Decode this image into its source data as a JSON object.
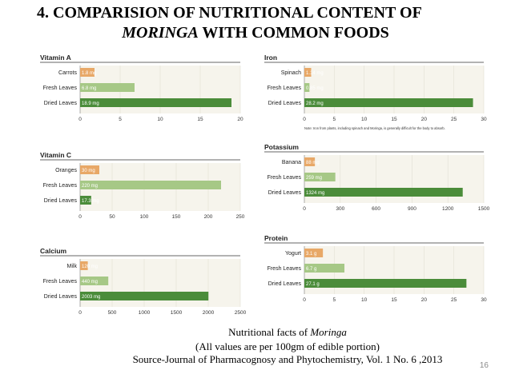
{
  "slide": {
    "title_line1": "4. COMPARISION OF NUTRITIONAL CONTENT OF",
    "title_line2_italic": "MORINGA",
    "title_line2_rest": " WITH COMMON FOODS",
    "footer_line1_prefix": "Nutritional facts of ",
    "footer_line1_italic": "Moringa",
    "footer_line2": "(All values are per 100gm of edible portion)",
    "footer_line3": "Source-Journal of Pharmacognosy and Phytochemistry, Vol. 1 No. 6 ,2013",
    "page_number": "16"
  },
  "colors": {
    "light_orange": "#e8a867",
    "light_green": "#a6c886",
    "dark_green": "#4b8c3a",
    "panel_bg": "#f6f4ec",
    "grid": "#e2dfd4"
  },
  "chart_data": [
    {
      "type": "bar",
      "title": "Vitamin A",
      "categories": [
        "Carrots",
        "Fresh Leaves",
        "Dried Leaves"
      ],
      "values": [
        1.8,
        6.8,
        18.9
      ],
      "labels": [
        "1.8 mg",
        "6.8 mg",
        "18.9 mg"
      ],
      "xlim": [
        0,
        20
      ],
      "ticks": [
        0,
        5,
        10,
        15,
        20
      ],
      "note": ""
    },
    {
      "type": "bar",
      "title": "Iron",
      "categories": [
        "Spinach",
        "Fresh Leaves",
        "Dried Leaves"
      ],
      "values": [
        1.14,
        0.85,
        28.2
      ],
      "labels": [
        "1.14 mg",
        "0.85 mg",
        "28.2 mg"
      ],
      "xlim": [
        0,
        30
      ],
      "ticks": [
        0,
        5,
        10,
        15,
        20,
        25,
        30
      ],
      "note": "Note: Iron from plants, including spinach and Moringa, is generally difficult for the body to absorb."
    },
    {
      "type": "bar",
      "title": "Vitamin C",
      "categories": [
        "Oranges",
        "Fresh Leaves",
        "Dried Leaves"
      ],
      "values": [
        30,
        220,
        17.3
      ],
      "labels": [
        "30 mg",
        "220 mg",
        "17.3 mg"
      ],
      "xlim": [
        0,
        250
      ],
      "ticks": [
        0,
        50,
        100,
        150,
        200,
        250
      ],
      "note": ""
    },
    {
      "type": "bar",
      "title": "Potassium",
      "categories": [
        "Banana",
        "Fresh Leaves",
        "Dried Leaves"
      ],
      "values": [
        88,
        259,
        1324
      ],
      "labels": [
        "88 mg",
        "259 mg",
        "1324 mg"
      ],
      "xlim": [
        0,
        1500
      ],
      "ticks": [
        0,
        300,
        600,
        900,
        1200,
        1500
      ],
      "note": ""
    },
    {
      "type": "bar",
      "title": "Calcium",
      "categories": [
        "Milk",
        "Fresh Leaves",
        "Dried Leaves"
      ],
      "values": [
        120,
        440,
        2003
      ],
      "labels": [
        "120 mg",
        "440 mg",
        "2003 mg"
      ],
      "xlim": [
        0,
        2500
      ],
      "ticks": [
        0,
        500,
        1000,
        1500,
        2000,
        2500
      ],
      "note": ""
    },
    {
      "type": "bar",
      "title": "Protein",
      "categories": [
        "Yogurt",
        "Fresh Leaves",
        "Dried Leaves"
      ],
      "values": [
        3.1,
        6.7,
        27.1
      ],
      "labels": [
        "3.1 g",
        "6.7 g",
        "27.1 g"
      ],
      "xlim": [
        0,
        30
      ],
      "ticks": [
        0,
        5,
        10,
        15,
        20,
        25,
        30
      ],
      "note": ""
    }
  ]
}
